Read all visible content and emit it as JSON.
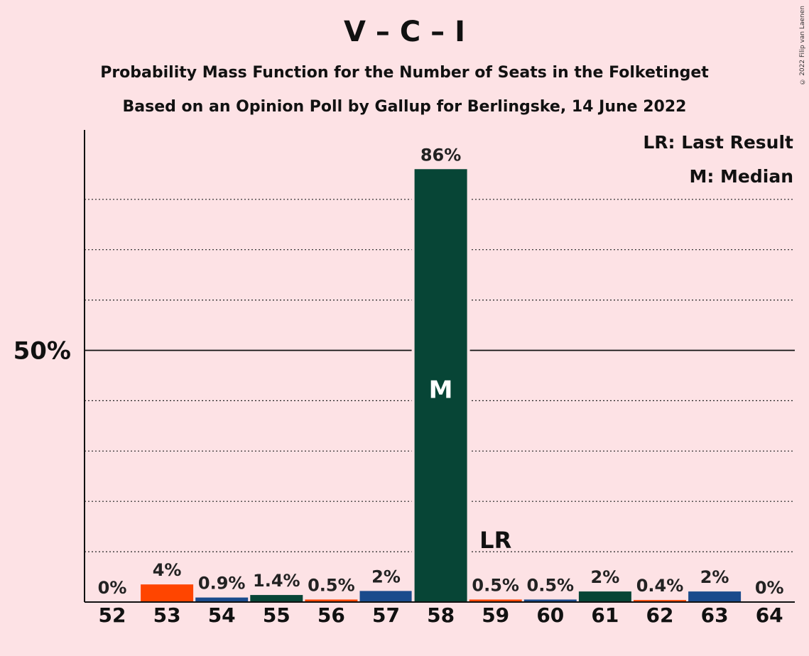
{
  "chart_data": {
    "type": "bar",
    "title": "V – C – I",
    "subtitle_1": "Probability Mass Function for the Number of Seats in the Folketinget",
    "subtitle_2": "Based on an Opinion Poll by Gallup for Berlingske, 14 June 2022",
    "copyright": "© 2022 Filip van Laenen",
    "categories": [
      "52",
      "53",
      "54",
      "55",
      "56",
      "57",
      "58",
      "59",
      "60",
      "61",
      "62",
      "63",
      "64"
    ],
    "values": [
      0,
      3.5,
      0.9,
      1.4,
      0.5,
      2.2,
      86,
      0.5,
      0.5,
      2.1,
      0.4,
      2.1,
      0
    ],
    "data_labels": [
      "0%",
      "4%",
      "0.9%",
      "1.4%",
      "0.5%",
      "2%",
      "86%",
      "0.5%",
      "0.5%",
      "2%",
      "0.4%",
      "2%",
      "0%"
    ],
    "bar_colors": [
      "#ff4500",
      "#ff4500",
      "#1a4b8c",
      "#074536",
      "#ff4500",
      "#1a4b8c",
      "#074536",
      "#ff4500",
      "#1a4b8c",
      "#074536",
      "#ff4500",
      "#1a4b8c",
      "#074536"
    ],
    "ylim": [
      0,
      94
    ],
    "ytick_label": "50%",
    "ytick_value": 50,
    "gridlines": [
      10,
      20,
      30,
      40,
      60,
      70,
      80
    ],
    "median_seat": "58",
    "median_marker": "M",
    "last_result_seat": "59",
    "last_result_marker": "LR",
    "legend": [
      "LR: Last Result",
      "M: Median"
    ],
    "legend_position": "top-right",
    "background": "#fde2e5"
  }
}
